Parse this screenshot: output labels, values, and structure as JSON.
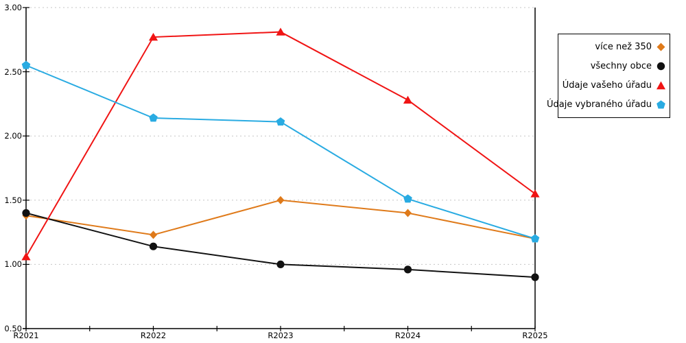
{
  "chart_data": {
    "type": "line",
    "categories": [
      "R2021",
      "R2022",
      "R2023",
      "R2024",
      "R2025"
    ],
    "series": [
      {
        "name": "více než 350",
        "color": "#df7a1a",
        "marker": "diamond",
        "values": [
          1.38,
          1.23,
          1.5,
          1.4,
          1.2
        ]
      },
      {
        "name": "všechny obce",
        "color": "#111111",
        "marker": "circle",
        "values": [
          1.4,
          1.14,
          1.0,
          0.96,
          0.9
        ]
      },
      {
        "name": "Údaje vašeho úřadu",
        "color": "#f01414",
        "marker": "triangle",
        "values": [
          1.06,
          2.77,
          2.81,
          2.28,
          1.55
        ]
      },
      {
        "name": "Údaje vybraného úřadu",
        "color": "#29abe2",
        "marker": "pentagon",
        "values": [
          2.55,
          2.14,
          2.11,
          1.51,
          1.2
        ]
      }
    ],
    "y_ticks": [
      "3.00",
      "2.50",
      "2.00",
      "1.50",
      "1.00",
      "0.50"
    ],
    "y_tick_values": [
      3.0,
      2.5,
      2.0,
      1.5,
      1.0,
      0.5
    ],
    "ylim": [
      0.5,
      3.0
    ],
    "grid": "horizontal-dotted",
    "grid_color": "#c4c4c4",
    "axis_color": "#000000",
    "legend_position": "outside-right"
  }
}
